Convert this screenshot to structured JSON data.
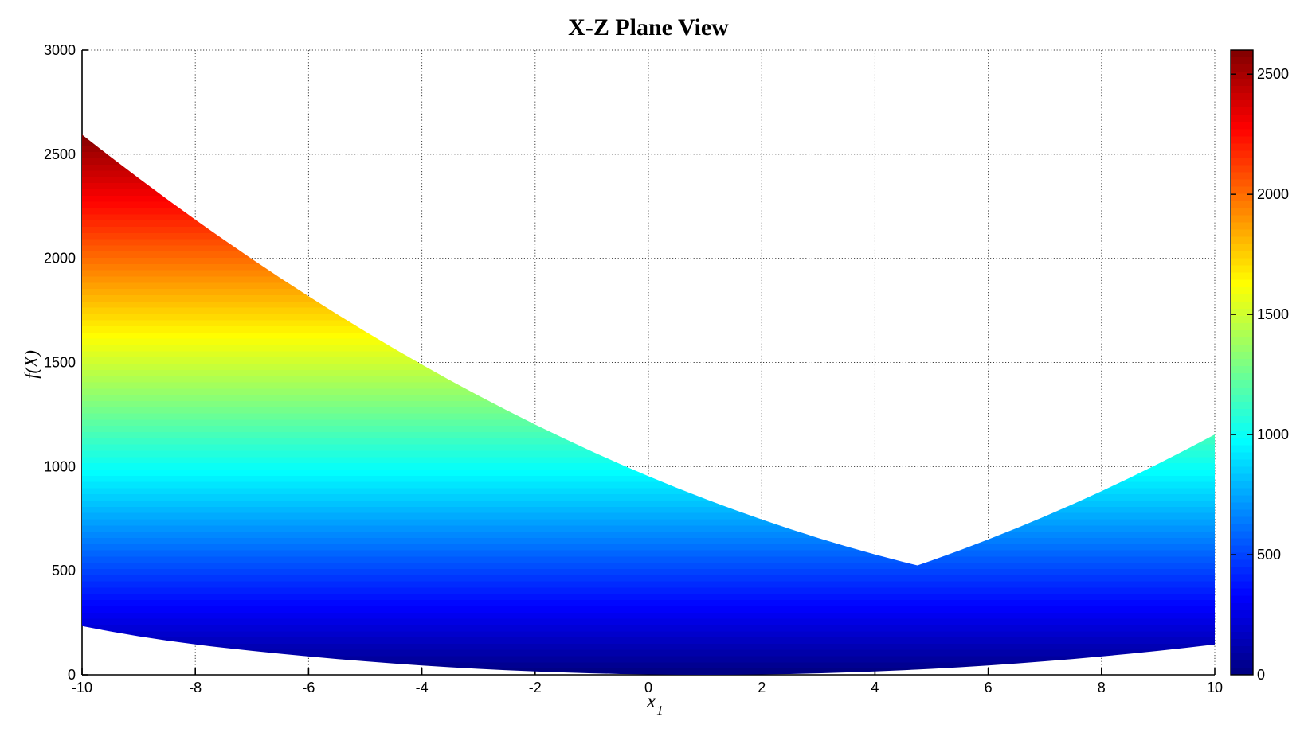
{
  "title": "X-Z Plane View",
  "axes": {
    "ylabel": "f(X)",
    "xlabel_base": "x",
    "xlabel_sub": "1"
  },
  "chart_data": {
    "type": "area",
    "title": "X-Z Plane View",
    "xlabel": "x_1",
    "ylabel": "f(X)",
    "xlim": [
      -10,
      10
    ],
    "ylim": [
      0,
      3000
    ],
    "xticks": [
      -10,
      -8,
      -6,
      -4,
      -2,
      0,
      2,
      4,
      6,
      8,
      10
    ],
    "yticks": [
      0,
      500,
      1000,
      1500,
      2000,
      2500,
      3000
    ],
    "grid": "dotted",
    "colormap": "jet",
    "colormap_anchors": [
      "#000080",
      "#0000FF",
      "#00FFFF",
      "#FFFF00",
      "#FF0000",
      "#800000"
    ],
    "description": "Side (X-Z plane) view of a surface: for each x1 the band spans min-to-max of f over x2, colored by height with jet colormap",
    "x": [
      -10,
      -9.5,
      -9,
      -8.5,
      -8,
      -7.75,
      -7.5,
      -7,
      -6.5,
      -6,
      -5.5,
      -5,
      -4.5,
      -4,
      -3.5,
      -3,
      -2.5,
      -2,
      -1.5,
      -1,
      -0.5,
      0,
      0.5,
      1,
      1.5,
      2,
      2.5,
      3,
      3.5,
      4,
      4.5,
      4.75,
      5,
      5.5,
      6,
      6.5,
      7,
      7.5,
      8,
      8.5,
      9,
      9.5,
      10
    ],
    "series": [
      {
        "name": "upper-envelope",
        "values": [
          2594,
          2488.25,
          2385,
          2284.25,
          2186,
          2137.81,
          2090.25,
          1997,
          1906.25,
          1818,
          1732.25,
          1649,
          1568.25,
          1490,
          1414.25,
          1341,
          1270.25,
          1202,
          1136.25,
          1073,
          1012.25,
          954,
          898.25,
          845,
          794.25,
          746,
          700.25,
          657,
          616.25,
          578,
          542.25,
          525.31,
          549,
          598.25,
          650,
          704.25,
          761,
          820.25,
          882,
          946.25,
          1013,
          1082.25,
          1154
        ]
      },
      {
        "name": "lower-envelope",
        "values": [
          234,
          208.25,
          185,
          164.25,
          146,
          137.81,
          130.05,
          115.2,
          101.25,
          88.2,
          76.05,
          64.8,
          54.45,
          45,
          36.45,
          28.8,
          22.05,
          16.2,
          11.25,
          7.2,
          4.05,
          1.8,
          0.45,
          0,
          0.45,
          1.8,
          4.05,
          7.2,
          11.25,
          16.2,
          22.05,
          25.31,
          28.8,
          36.45,
          45,
          54.45,
          64.8,
          76.05,
          88.2,
          101.25,
          115.2,
          130.05,
          145.8
        ]
      }
    ],
    "colorbar": {
      "min": 0,
      "max": 2600,
      "ticks": [
        0,
        500,
        1000,
        1500,
        2000,
        2500
      ]
    }
  }
}
